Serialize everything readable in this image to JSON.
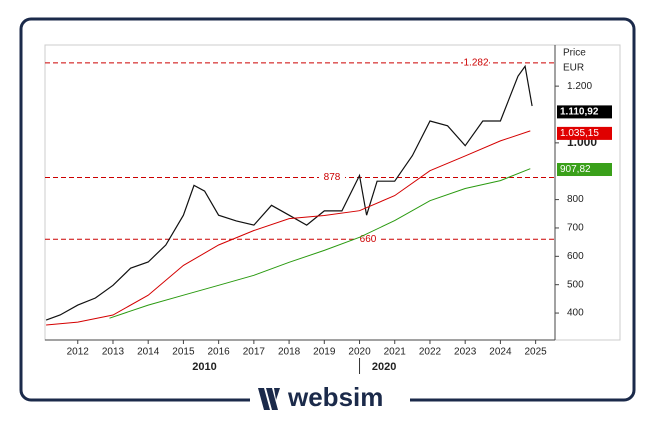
{
  "chart_data": {
    "type": "line",
    "y_label": "Price",
    "y_unit": "EUR",
    "xlim": [
      2011.07,
      2025.55
    ],
    "xticks": [
      2012,
      2013,
      2014,
      2015,
      2016,
      2017,
      2018,
      2019,
      2020,
      2021,
      2022,
      2023,
      2024,
      2025
    ],
    "ylim": [
      305,
      1345
    ],
    "yticks": [
      400,
      500,
      600,
      700,
      800,
      {
        "value": 1000,
        "label": "1.000"
      },
      {
        "value": 1200,
        "label": "1.200"
      }
    ],
    "reference_lines": [
      {
        "value": 1282,
        "label": "1.282"
      },
      {
        "value": 878,
        "label": "878"
      },
      {
        "value": 660,
        "label": "660"
      }
    ],
    "value_tags": [
      {
        "value": 1110.92,
        "label": "1.110,92",
        "color": "#000000"
      },
      {
        "value": 1035.15,
        "label": "1.035,15",
        "color": "#e00000"
      },
      {
        "value": 907.82,
        "label": "907,82",
        "color": "#3aa01a"
      }
    ],
    "period_labels": [
      {
        "x": 2015.6,
        "label": "2010"
      },
      {
        "x": 2020.7,
        "label": "2020"
      }
    ],
    "series": [
      {
        "color": "#111111",
        "x": [
          2011.1,
          2011.5,
          2012,
          2012.5,
          2013,
          2013.5,
          2014,
          2014.5,
          2015,
          2015.3,
          2015.6,
          2016,
          2016.5,
          2017,
          2017.5,
          2018,
          2018.5,
          2019,
          2019.5,
          2020,
          2020.2,
          2020.5,
          2021,
          2021.5,
          2022,
          2022.5,
          2023,
          2023.5,
          2024,
          2024.5,
          2024.7,
          2024.9
        ],
        "values": [
          375,
          393,
          428,
          453,
          498,
          558,
          580,
          640,
          745,
          850,
          830,
          745,
          725,
          710,
          780,
          745,
          710,
          760,
          760,
          885,
          745,
          865,
          865,
          955,
          1077,
          1060,
          990,
          1077,
          1077,
          1235,
          1270,
          1130
        ]
      },
      {
        "color": "#d40000",
        "x": [
          2011.1,
          2012,
          2013,
          2014,
          2015,
          2016,
          2017,
          2018,
          2019,
          2020,
          2021,
          2022,
          2023,
          2024,
          2024.85
        ],
        "values": [
          358,
          368,
          393,
          463,
          568,
          640,
          691,
          733,
          744,
          761,
          814,
          902,
          954,
          1007,
          1042
        ]
      },
      {
        "color": "#2a9a10",
        "x": [
          2012.9,
          2014,
          2015,
          2016,
          2017,
          2018,
          2019,
          2020,
          2021,
          2022,
          2023,
          2024,
          2024.85
        ],
        "values": [
          382,
          428,
          463,
          498,
          533,
          579,
          621,
          667,
          726,
          796,
          839,
          867,
          909
        ]
      }
    ]
  },
  "brand": "websim"
}
